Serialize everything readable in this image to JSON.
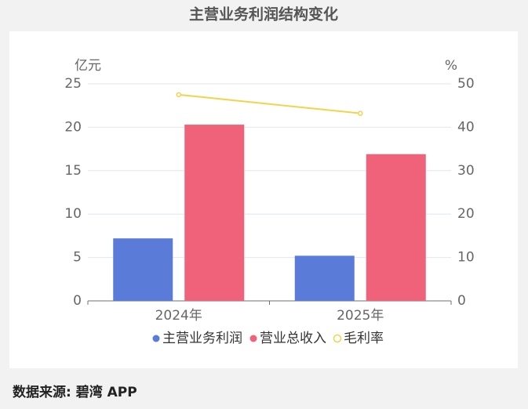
{
  "chart_data": {
    "type": "bar",
    "title": "主营业务利润结构变化",
    "y_label": "亿元",
    "y2_label": "%",
    "categories": [
      "2024年",
      "2025年"
    ],
    "series": [
      {
        "name": "主营业务利润",
        "color": "#5b7bd8",
        "values": [
          7.2,
          5.2
        ]
      },
      {
        "name": "营业总收入",
        "color": "#f0617a",
        "values": [
          20.3,
          16.9
        ]
      },
      {
        "name": "毛利率",
        "color": "#f5d24b",
        "type": "line",
        "axis": "y2",
        "values": [
          47.5,
          43.2
        ]
      }
    ],
    "ylim": [
      0,
      25
    ],
    "yticks": [
      0,
      5,
      10,
      15,
      20,
      25
    ],
    "y2lim": [
      0,
      50
    ],
    "y2ticks": [
      0,
      10,
      20,
      30,
      40,
      50
    ],
    "grid": true,
    "legend": "bottom",
    "source": "数据来源: 碧湾 APP"
  }
}
